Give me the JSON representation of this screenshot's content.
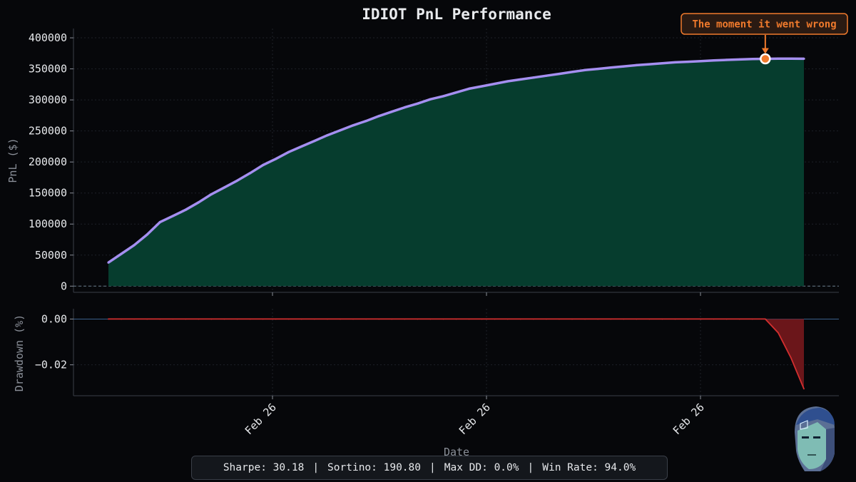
{
  "chart_data": [
    {
      "type": "area",
      "title": "IDIOT PnL Performance",
      "xlabel": "",
      "ylabel": "PnL ($)",
      "ylim": [
        -10000,
        415000
      ],
      "yticks": [
        0,
        50000,
        100000,
        150000,
        200000,
        250000,
        300000,
        350000,
        400000
      ],
      "ytick_labels": [
        "0",
        "50000",
        "100000",
        "150000",
        "200000",
        "250000",
        "300000",
        "350000",
        "400000"
      ],
      "grid": true,
      "x": [
        0,
        1,
        2,
        3,
        4,
        5,
        6,
        7,
        8,
        9,
        10,
        11,
        12,
        13,
        14,
        15,
        16,
        17,
        18,
        19,
        20,
        21,
        22,
        23,
        24,
        25,
        26,
        27,
        28,
        29,
        30,
        31,
        32,
        33,
        34,
        35,
        36,
        37,
        38,
        39,
        40,
        41,
        42,
        43,
        44,
        45,
        46,
        47,
        48,
        49,
        50,
        51,
        52,
        53,
        54
      ],
      "series": [
        {
          "name": "",
          "color": "#a58ff0",
          "fill": "#063d2e",
          "values": [
            38000,
            52000,
            66000,
            83000,
            103000,
            113000,
            123000,
            135000,
            148000,
            159000,
            170000,
            182000,
            195000,
            205000,
            216000,
            225000,
            234000,
            243000,
            251000,
            259000,
            266000,
            274000,
            281000,
            288000,
            294000,
            301000,
            306000,
            312000,
            318000,
            322000,
            326000,
            330000,
            333000,
            336000,
            339000,
            342000,
            345000,
            348000,
            350000,
            352000,
            354000,
            356000,
            357500,
            359000,
            360500,
            361500,
            362500,
            363500,
            364500,
            365200,
            365800,
            366200,
            366400,
            366500,
            366300
          ]
        }
      ],
      "annotations": [
        {
          "text": "The moment it went wrong",
          "x": 51,
          "y": 366200,
          "color": "#f07a2c"
        }
      ]
    },
    {
      "type": "area",
      "title": "",
      "xlabel": "Date",
      "ylabel": "Drawdown (%)",
      "ylim": [
        -0.0335,
        0.0045
      ],
      "yticks": [
        0.0,
        -0.02
      ],
      "ytick_labels": [
        "0.00",
        "−0.02"
      ],
      "xtick_labels": [
        "Feb 26",
        "Feb 26",
        "Feb 26"
      ],
      "grid": true,
      "x": [
        0,
        1,
        2,
        3,
        4,
        5,
        6,
        7,
        8,
        9,
        10,
        11,
        12,
        13,
        14,
        15,
        16,
        17,
        18,
        19,
        20,
        21,
        22,
        23,
        24,
        25,
        26,
        27,
        28,
        29,
        30,
        31,
        32,
        33,
        34,
        35,
        36,
        37,
        38,
        39,
        40,
        41,
        42,
        43,
        44,
        45,
        46,
        47,
        48,
        49,
        50,
        51,
        52,
        53,
        54
      ],
      "series": [
        {
          "name": "",
          "color": "#d32f2f",
          "fill": "#6b161a",
          "values": [
            0,
            0,
            0,
            0,
            0,
            0,
            0,
            0,
            0,
            0,
            0,
            0,
            0,
            0,
            0,
            0,
            0,
            0,
            0,
            0,
            0,
            0,
            0,
            0,
            0,
            0,
            0,
            0,
            0,
            0,
            0,
            0,
            0,
            0,
            0,
            0,
            0,
            0,
            0,
            0,
            0,
            0,
            0,
            0,
            0,
            0,
            0,
            0,
            0,
            0,
            0,
            0,
            -0.006,
            -0.017,
            -0.0305
          ]
        }
      ]
    }
  ],
  "stats": {
    "sharpe": "Sharpe: 30.18",
    "sortino": "Sortino: 190.80",
    "max_dd": "Max DD: 0.0%",
    "win_rate": "Win Rate: 94.0%",
    "separator": "|"
  },
  "colors": {
    "background": "#06070a",
    "accent": "#a58ff0",
    "pnl_fill": "#063d2e",
    "drawdown": "#d32f2f",
    "annotation": "#f07a2c"
  },
  "avatar_icon": "robot-head-icon"
}
